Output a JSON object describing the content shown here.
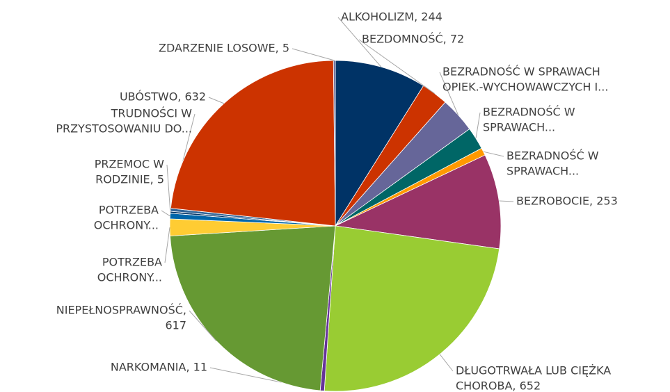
{
  "chart_data": {
    "type": "pie",
    "values": [
      244,
      72,
      95,
      60,
      20,
      253,
      652,
      11,
      617,
      45,
      15,
      5,
      8,
      632,
      5
    ],
    "value_labels": [
      [
        "ALKOHOLIZM, 244"
      ],
      [
        "BEZDOMNOŚĆ, 72"
      ],
      [
        "BEZRADNOŚĆ W SPRAWACH",
        "OPIEK.-WYCHOWAWCZYCH I..."
      ],
      [
        "BEZRADNOŚĆ W",
        "SPRAWACH..."
      ],
      [
        "BEZRADNOŚĆ W",
        "SPRAWACH..."
      ],
      [
        "BEZROBOCIE, 253"
      ],
      [
        "DŁUGOTRWAŁA LUB CIĘŻKA",
        "CHOROBA, 652"
      ],
      [
        "NARKOMANIA, 11"
      ],
      [
        "NIEPEŁNOSPRAWNOŚĆ,",
        "617"
      ],
      [
        "POTRZEBA",
        "OCHRONY..."
      ],
      [
        "POTRZEBA",
        "OCHRONY..."
      ],
      [
        "PRZEMOC W",
        "RODZINIE, 5"
      ],
      [
        "TRUDNOŚCI W",
        "PRZYSTOSOWANIU DO..."
      ],
      [
        "UBÓSTWO, 632"
      ],
      [
        "ZDARZENIE LOSOWE, 5"
      ]
    ],
    "colors": [
      "#003366",
      "#cc3300",
      "#666699",
      "#006666",
      "#ff9900",
      "#993366",
      "#99cc33",
      "#663399",
      "#669933",
      "#ffcc33",
      "#0066aa",
      "#003366",
      "#336699",
      "#cc3300",
      "#666699"
    ]
  }
}
